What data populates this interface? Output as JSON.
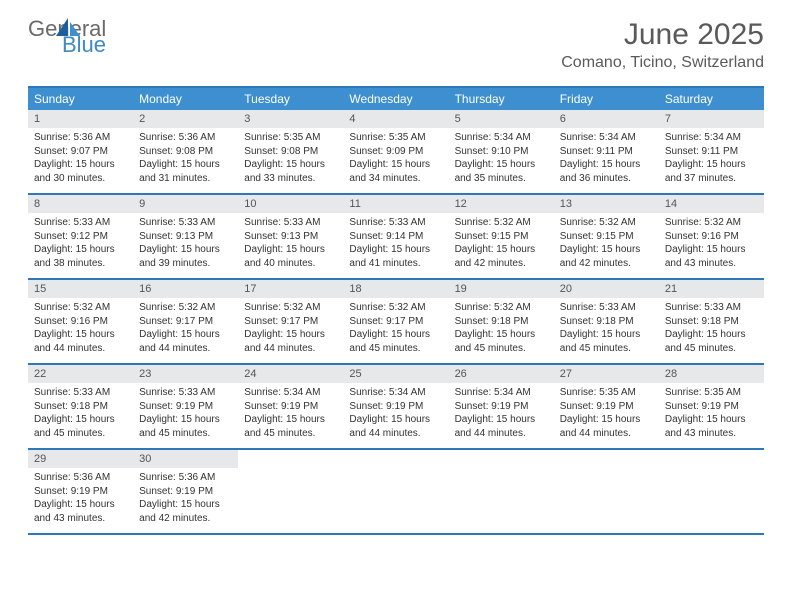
{
  "brand": {
    "general": "General",
    "blue": "Blue"
  },
  "title": "June 2025",
  "location": "Comano, Ticino, Switzerland",
  "colors": {
    "header_bar": "#3d8fcf",
    "border": "#2e77b8",
    "daynum_bg": "#e7e8e9",
    "text": "#333333",
    "title_text": "#5a5a5a",
    "logo_gray": "#6a6a6a",
    "logo_blue": "#3b8bc6"
  },
  "dow": [
    "Sunday",
    "Monday",
    "Tuesday",
    "Wednesday",
    "Thursday",
    "Friday",
    "Saturday"
  ],
  "weeks": [
    [
      {
        "n": "1",
        "sr": "5:36 AM",
        "ss": "9:07 PM",
        "dl": "15 hours and 30 minutes."
      },
      {
        "n": "2",
        "sr": "5:36 AM",
        "ss": "9:08 PM",
        "dl": "15 hours and 31 minutes."
      },
      {
        "n": "3",
        "sr": "5:35 AM",
        "ss": "9:08 PM",
        "dl": "15 hours and 33 minutes."
      },
      {
        "n": "4",
        "sr": "5:35 AM",
        "ss": "9:09 PM",
        "dl": "15 hours and 34 minutes."
      },
      {
        "n": "5",
        "sr": "5:34 AM",
        "ss": "9:10 PM",
        "dl": "15 hours and 35 minutes."
      },
      {
        "n": "6",
        "sr": "5:34 AM",
        "ss": "9:11 PM",
        "dl": "15 hours and 36 minutes."
      },
      {
        "n": "7",
        "sr": "5:34 AM",
        "ss": "9:11 PM",
        "dl": "15 hours and 37 minutes."
      }
    ],
    [
      {
        "n": "8",
        "sr": "5:33 AM",
        "ss": "9:12 PM",
        "dl": "15 hours and 38 minutes."
      },
      {
        "n": "9",
        "sr": "5:33 AM",
        "ss": "9:13 PM",
        "dl": "15 hours and 39 minutes."
      },
      {
        "n": "10",
        "sr": "5:33 AM",
        "ss": "9:13 PM",
        "dl": "15 hours and 40 minutes."
      },
      {
        "n": "11",
        "sr": "5:33 AM",
        "ss": "9:14 PM",
        "dl": "15 hours and 41 minutes."
      },
      {
        "n": "12",
        "sr": "5:32 AM",
        "ss": "9:15 PM",
        "dl": "15 hours and 42 minutes."
      },
      {
        "n": "13",
        "sr": "5:32 AM",
        "ss": "9:15 PM",
        "dl": "15 hours and 42 minutes."
      },
      {
        "n": "14",
        "sr": "5:32 AM",
        "ss": "9:16 PM",
        "dl": "15 hours and 43 minutes."
      }
    ],
    [
      {
        "n": "15",
        "sr": "5:32 AM",
        "ss": "9:16 PM",
        "dl": "15 hours and 44 minutes."
      },
      {
        "n": "16",
        "sr": "5:32 AM",
        "ss": "9:17 PM",
        "dl": "15 hours and 44 minutes."
      },
      {
        "n": "17",
        "sr": "5:32 AM",
        "ss": "9:17 PM",
        "dl": "15 hours and 44 minutes."
      },
      {
        "n": "18",
        "sr": "5:32 AM",
        "ss": "9:17 PM",
        "dl": "15 hours and 45 minutes."
      },
      {
        "n": "19",
        "sr": "5:32 AM",
        "ss": "9:18 PM",
        "dl": "15 hours and 45 minutes."
      },
      {
        "n": "20",
        "sr": "5:33 AM",
        "ss": "9:18 PM",
        "dl": "15 hours and 45 minutes."
      },
      {
        "n": "21",
        "sr": "5:33 AM",
        "ss": "9:18 PM",
        "dl": "15 hours and 45 minutes."
      }
    ],
    [
      {
        "n": "22",
        "sr": "5:33 AM",
        "ss": "9:18 PM",
        "dl": "15 hours and 45 minutes."
      },
      {
        "n": "23",
        "sr": "5:33 AM",
        "ss": "9:19 PM",
        "dl": "15 hours and 45 minutes."
      },
      {
        "n": "24",
        "sr": "5:34 AM",
        "ss": "9:19 PM",
        "dl": "15 hours and 45 minutes."
      },
      {
        "n": "25",
        "sr": "5:34 AM",
        "ss": "9:19 PM",
        "dl": "15 hours and 44 minutes."
      },
      {
        "n": "26",
        "sr": "5:34 AM",
        "ss": "9:19 PM",
        "dl": "15 hours and 44 minutes."
      },
      {
        "n": "27",
        "sr": "5:35 AM",
        "ss": "9:19 PM",
        "dl": "15 hours and 44 minutes."
      },
      {
        "n": "28",
        "sr": "5:35 AM",
        "ss": "9:19 PM",
        "dl": "15 hours and 43 minutes."
      }
    ],
    [
      {
        "n": "29",
        "sr": "5:36 AM",
        "ss": "9:19 PM",
        "dl": "15 hours and 43 minutes."
      },
      {
        "n": "30",
        "sr": "5:36 AM",
        "ss": "9:19 PM",
        "dl": "15 hours and 42 minutes."
      },
      null,
      null,
      null,
      null,
      null
    ]
  ],
  "labels": {
    "sunrise": "Sunrise: ",
    "sunset": "Sunset: ",
    "daylight": "Daylight: "
  }
}
